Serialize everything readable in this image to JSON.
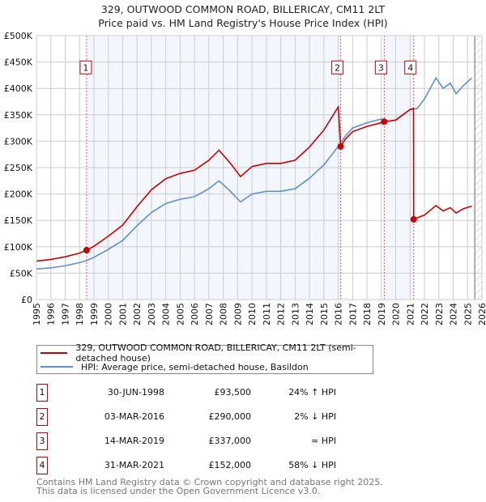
{
  "title": "329, OUTWOOD COMMON ROAD, BILLERICAY, CM11 2LT",
  "subtitle": "Price paid vs. HM Land Registry's House Price Index (HPI)",
  "chart_data": {
    "type": "line",
    "title": "329, OUTWOOD COMMON ROAD, BILLERICAY, CM11 2LT — Price paid vs. HM Land Registry's House Price Index (HPI)",
    "xlim": [
      1995,
      2026
    ],
    "ylim": [
      0,
      500000
    ],
    "x_ticks": [
      "1995",
      "1996",
      "1997",
      "1998",
      "1999",
      "2000",
      "2001",
      "2002",
      "2003",
      "2004",
      "2005",
      "2006",
      "2007",
      "2008",
      "2009",
      "2010",
      "2011",
      "2012",
      "2013",
      "2014",
      "2015",
      "2016",
      "2017",
      "2018",
      "2019",
      "2020",
      "2021",
      "2022",
      "2023",
      "2024",
      "2025",
      "2026"
    ],
    "y_ticks": [
      {
        "v": 0,
        "l": "£0"
      },
      {
        "v": 50000,
        "l": "£50K"
      },
      {
        "v": 100000,
        "l": "£100K"
      },
      {
        "v": 150000,
        "l": "£150K"
      },
      {
        "v": 200000,
        "l": "£200K"
      },
      {
        "v": 250000,
        "l": "£250K"
      },
      {
        "v": 300000,
        "l": "£300K"
      },
      {
        "v": 350000,
        "l": "£350K"
      },
      {
        "v": 400000,
        "l": "£400K"
      },
      {
        "v": 450000,
        "l": "£450K"
      },
      {
        "v": 500000,
        "l": "£500K"
      }
    ],
    "grid": true,
    "forecast_from": 2025.5,
    "series": [
      {
        "name": "329, OUTWOOD COMMON ROAD, BILLERICAY, CM11 2LT (semi-detached house)",
        "color": "#cc0000",
        "points": [
          [
            1995,
            73000
          ],
          [
            1996,
            76000
          ],
          [
            1997,
            81000
          ],
          [
            1998,
            88000
          ],
          [
            1998.49,
            93500
          ],
          [
            1999,
            101000
          ],
          [
            2000,
            120000
          ],
          [
            2001,
            141000
          ],
          [
            2002,
            176000
          ],
          [
            2003,
            208000
          ],
          [
            2004,
            229000
          ],
          [
            2005,
            239000
          ],
          [
            2006,
            245000
          ],
          [
            2007,
            264000
          ],
          [
            2007.7,
            283000
          ],
          [
            2008.5,
            258000
          ],
          [
            2009.2,
            233000
          ],
          [
            2010,
            252000
          ],
          [
            2011,
            258000
          ],
          [
            2012,
            258000
          ],
          [
            2013,
            264000
          ],
          [
            2014,
            289000
          ],
          [
            2015,
            321000
          ],
          [
            2016,
            365000
          ],
          [
            2016.17,
            290000
          ],
          [
            2016.5,
            304000
          ],
          [
            2017,
            318000
          ],
          [
            2018,
            328000
          ],
          [
            2019,
            335000
          ],
          [
            2019.2,
            337000
          ],
          [
            2019.5,
            338000
          ],
          [
            2020,
            340000
          ],
          [
            2021,
            360000
          ],
          [
            2021.24,
            362000
          ],
          [
            2021.25,
            152000
          ],
          [
            2021.5,
            155000
          ],
          [
            2022,
            160000
          ],
          [
            2022.8,
            178000
          ],
          [
            2023.3,
            168000
          ],
          [
            2023.8,
            174000
          ],
          [
            2024.2,
            164000
          ],
          [
            2024.7,
            172000
          ],
          [
            2025.3,
            177000
          ]
        ]
      },
      {
        "name": "HPI: Average price, semi-detached house, Basildon",
        "color": "#5b8fd6",
        "points": [
          [
            1995,
            58000
          ],
          [
            1996,
            60000
          ],
          [
            1997,
            64000
          ],
          [
            1998,
            70000
          ],
          [
            1998.5,
            74000
          ],
          [
            1999,
            80000
          ],
          [
            2000,
            95000
          ],
          [
            2001,
            112000
          ],
          [
            2002,
            140000
          ],
          [
            2003,
            165000
          ],
          [
            2004,
            182000
          ],
          [
            2005,
            190000
          ],
          [
            2006,
            195000
          ],
          [
            2007,
            210000
          ],
          [
            2007.7,
            225000
          ],
          [
            2008.5,
            205000
          ],
          [
            2009.2,
            185000
          ],
          [
            2010,
            200000
          ],
          [
            2011,
            205000
          ],
          [
            2012,
            205000
          ],
          [
            2013,
            210000
          ],
          [
            2014,
            230000
          ],
          [
            2015,
            255000
          ],
          [
            2016,
            290000
          ],
          [
            2016.5,
            310000
          ],
          [
            2017,
            325000
          ],
          [
            2018,
            335000
          ],
          [
            2019,
            342000
          ],
          [
            2019.5,
            338000
          ],
          [
            2020,
            340000
          ],
          [
            2021,
            360000
          ],
          [
            2021.5,
            362000
          ],
          [
            2022,
            380000
          ],
          [
            2022.8,
            420000
          ],
          [
            2023.3,
            400000
          ],
          [
            2023.8,
            410000
          ],
          [
            2024.2,
            390000
          ],
          [
            2024.7,
            405000
          ],
          [
            2025.3,
            420000
          ]
        ]
      }
    ],
    "sales": [
      {
        "label": "1",
        "x": 1998.49,
        "price": 93500,
        "date": "30-JUN-1998",
        "price_text": "£93,500",
        "hpi_text": "24% ↑ HPI"
      },
      {
        "label": "2",
        "x": 2016.17,
        "price": 290000,
        "date": "03-MAR-2016",
        "price_text": "£290,000",
        "hpi_text": "2% ↓ HPI"
      },
      {
        "label": "3",
        "x": 2019.2,
        "price": 337000,
        "date": "14-MAR-2019",
        "price_text": "£337,000",
        "hpi_text": "≈ HPI"
      },
      {
        "label": "4",
        "x": 2021.25,
        "price": 152000,
        "date": "31-MAR-2021",
        "price_text": "£152,000",
        "hpi_text": "58% ↓ HPI"
      }
    ],
    "shaded_ranges": [
      [
        1998.49,
        2016.17
      ],
      [
        2019.2,
        2021.25
      ]
    ]
  },
  "legend": {
    "items": [
      "329, OUTWOOD COMMON ROAD, BILLERICAY, CM11 2LT (semi-detached house)",
      "HPI: Average price, semi-detached house, Basildon"
    ]
  },
  "footer": {
    "line1": "Contains HM Land Registry data © Crown copyright and database right 2025.",
    "line2": "This data is licensed under the Open Government Licence v3.0."
  }
}
